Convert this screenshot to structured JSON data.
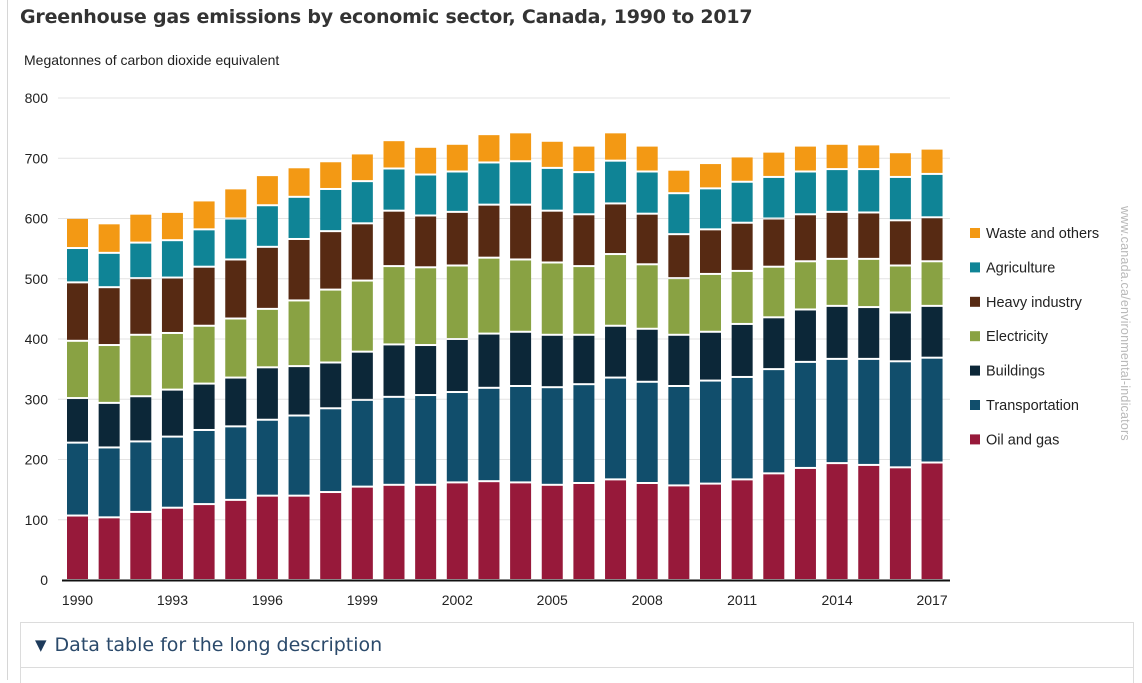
{
  "title": "Greenhouse gas emissions by economic sector, Canada, 1990 to 2017",
  "details_label": "Data table for the long description",
  "details_icon": "triangle-down-icon",
  "watermark": "www.canada.ca/environmental-indicators",
  "chart_data": {
    "type": "bar",
    "stacked": true,
    "title": "Greenhouse gas emissions by economic sector, Canada, 1990 to 2017",
    "ylabel": "Megatonnes of carbon dioxide equivalent",
    "xlabel": "",
    "ylim": [
      0,
      800
    ],
    "yticks": [
      0,
      100,
      200,
      300,
      400,
      500,
      600,
      700,
      800
    ],
    "grid": true,
    "legend_position": "right",
    "categories": [
      "1990",
      "1991",
      "1992",
      "1993",
      "1994",
      "1995",
      "1996",
      "1997",
      "1998",
      "1999",
      "2000",
      "2001",
      "2002",
      "2003",
      "2004",
      "2005",
      "2006",
      "2007",
      "2008",
      "2009",
      "2010",
      "2011",
      "2012",
      "2013",
      "2014",
      "2015",
      "2016",
      "2017"
    ],
    "xtick_labels": [
      "1990",
      "1993",
      "1996",
      "1999",
      "2002",
      "2005",
      "2008",
      "2011",
      "2014",
      "2017"
    ],
    "series": [
      {
        "name": "Oil and gas",
        "color": "#97193a",
        "values": [
          107,
          104,
          113,
          120,
          126,
          133,
          140,
          140,
          146,
          155,
          158,
          158,
          162,
          164,
          162,
          158,
          161,
          167,
          161,
          157,
          160,
          167,
          177,
          186,
          194,
          191,
          187,
          195
        ]
      },
      {
        "name": "Transportation",
        "color": "#114e6c",
        "values": [
          121,
          116,
          117,
          118,
          123,
          122,
          126,
          133,
          139,
          144,
          146,
          149,
          150,
          155,
          160,
          162,
          164,
          169,
          168,
          165,
          171,
          170,
          173,
          176,
          173,
          176,
          176,
          174
        ]
      },
      {
        "name": "Buildings",
        "color": "#0c2738",
        "values": [
          74,
          74,
          75,
          78,
          77,
          81,
          87,
          82,
          76,
          80,
          87,
          83,
          88,
          90,
          90,
          87,
          82,
          86,
          88,
          85,
          81,
          88,
          86,
          87,
          88,
          86,
          81,
          86
        ]
      },
      {
        "name": "Electricity",
        "color": "#89a243",
        "values": [
          95,
          96,
          102,
          94,
          96,
          98,
          97,
          109,
          121,
          118,
          130,
          129,
          122,
          126,
          120,
          120,
          114,
          119,
          107,
          94,
          96,
          88,
          84,
          80,
          78,
          80,
          78,
          74
        ]
      },
      {
        "name": "Heavy industry",
        "color": "#572a13",
        "values": [
          97,
          96,
          94,
          92,
          98,
          98,
          103,
          102,
          97,
          95,
          92,
          86,
          89,
          88,
          91,
          86,
          86,
          84,
          84,
          73,
          74,
          80,
          80,
          78,
          78,
          77,
          75,
          73
        ]
      },
      {
        "name": "Agriculture",
        "color": "#0f8496",
        "values": [
          57,
          57,
          59,
          62,
          62,
          68,
          69,
          70,
          70,
          70,
          70,
          68,
          67,
          70,
          72,
          71,
          70,
          71,
          70,
          68,
          68,
          68,
          69,
          71,
          71,
          72,
          72,
          72
        ]
      },
      {
        "name": "Waste and others",
        "color": "#f39914",
        "values": [
          50,
          49,
          48,
          47,
          48,
          50,
          50,
          49,
          46,
          46,
          47,
          46,
          46,
          47,
          48,
          45,
          44,
          47,
          43,
          39,
          42,
          42,
          42,
          43,
          42,
          41,
          41,
          42
        ]
      }
    ]
  }
}
